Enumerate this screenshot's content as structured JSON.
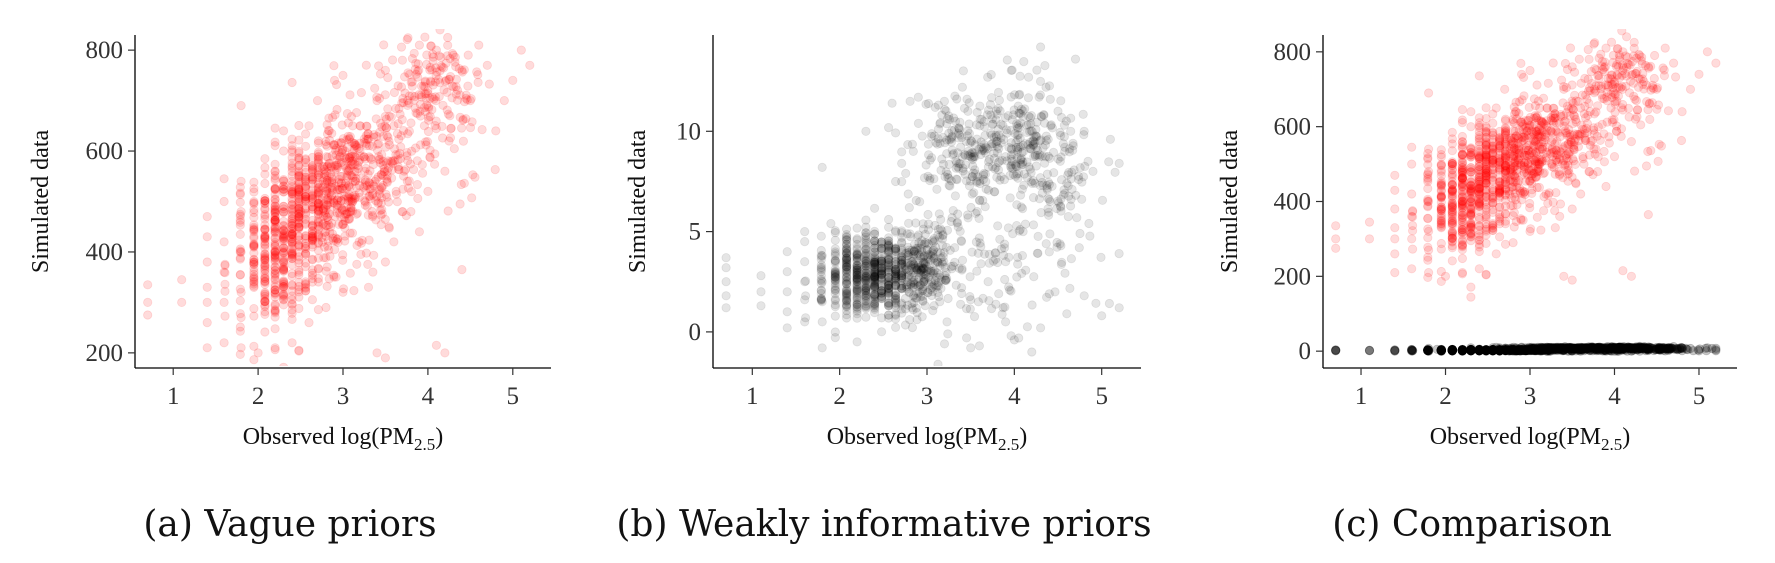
{
  "colors": {
    "vague": "#ff0000",
    "weakly": "#000000",
    "axis": "#000000"
  },
  "chart_data": [
    {
      "type": "scatter",
      "caption": "(a) Vague priors",
      "xlabel": "Observed log(PM",
      "xlabel_sub": "2.5",
      "xlabel_close": ")",
      "ylabel": "Simulated data",
      "xlim": [
        0.55,
        5.45
      ],
      "ylim": [
        170,
        830
      ],
      "xticks": [
        1,
        2,
        3,
        4,
        5
      ],
      "yticks": [
        200,
        400,
        600,
        800
      ],
      "grid": false,
      "series": [
        {
          "color": "#ff0000",
          "alpha": 0.14,
          "model": "vague",
          "points": [
            [
              0.7,
              275
            ],
            [
              0.7,
              300
            ],
            [
              0.7,
              335
            ],
            [
              1.1,
              300
            ],
            [
              1.1,
              345
            ],
            [
              1.4,
              210
            ],
            [
              1.4,
              260
            ],
            [
              1.4,
              300
            ],
            [
              1.4,
              330
            ],
            [
              1.4,
              380
            ],
            [
              1.4,
              430
            ],
            [
              1.4,
              470
            ],
            [
              1.6,
              220
            ],
            [
              1.6,
              300
            ],
            [
              1.6,
              360
            ],
            [
              1.6,
              420
            ],
            [
              1.6,
              500
            ],
            [
              1.6,
              545
            ],
            [
              1.8,
              210
            ],
            [
              1.8,
              270
            ],
            [
              1.8,
              320
            ],
            [
              1.8,
              400
            ],
            [
              1.8,
              480
            ],
            [
              1.8,
              540
            ],
            [
              1.8,
              690
            ],
            [
              2.2,
              560
            ],
            [
              2.3,
              600
            ],
            [
              2.3,
              640
            ],
            [
              2.6,
              650
            ],
            [
              2.7,
              700
            ],
            [
              2.9,
              740
            ],
            [
              3.0,
              750
            ],
            [
              3.2,
              650
            ],
            [
              3.4,
              700
            ],
            [
              3.5,
              760
            ],
            [
              3.7,
              780
            ],
            [
              3.9,
              810
            ],
            [
              4.1,
              800
            ],
            [
              4.3,
              790
            ],
            [
              4.4,
              760
            ],
            [
              4.6,
              810
            ],
            [
              4.7,
              770
            ],
            [
              4.9,
              700
            ],
            [
              5.0,
              740
            ],
            [
              5.1,
              800
            ],
            [
              5.2,
              770
            ],
            [
              4.5,
              700
            ],
            [
              4.8,
              640
            ],
            [
              4.2,
              560
            ],
            [
              4.0,
              520
            ],
            [
              3.8,
              480
            ],
            [
              3.6,
              420
            ],
            [
              3.5,
              380
            ],
            [
              3.3,
              330
            ],
            [
              3.4,
              200
            ],
            [
              3.5,
              190
            ],
            [
              4.2,
              200
            ],
            [
              4.1,
              215
            ],
            [
              4.4,
              365
            ],
            [
              3.9,
              440
            ],
            [
              3.0,
              320
            ],
            [
              2.8,
              290
            ],
            [
              2.6,
              260
            ],
            [
              2.4,
              220
            ],
            [
              2.2,
              210
            ],
            [
              2.0,
              200
            ],
            [
              2.5,
              480
            ],
            [
              2.9,
              560
            ],
            [
              3.2,
              600
            ],
            [
              3.6,
              650
            ],
            [
              4.0,
              720
            ]
          ],
          "clusters": [
            {
              "cx": 2.7,
              "cy": 500,
              "sx": 0.35,
              "sy": 55,
              "n": 360
            },
            {
              "cx": 2.15,
              "cy": 380,
              "sx": 0.22,
              "sy": 80,
              "n": 220
            },
            {
              "cx": 3.2,
              "cy": 560,
              "sx": 0.35,
              "sy": 55,
              "n": 240
            },
            {
              "cx": 4.1,
              "cy": 720,
              "sx": 0.25,
              "sy": 55,
              "n": 160
            },
            {
              "cx": 3.5,
              "cy": 600,
              "sx": 0.5,
              "sy": 80,
              "n": 120
            },
            {
              "cx": 2.4,
              "cy": 430,
              "sx": 0.3,
              "sy": 70,
              "n": 180
            }
          ]
        }
      ]
    },
    {
      "type": "scatter",
      "caption": "(b) Weakly informative priors",
      "xlabel": "Observed log(PM",
      "xlabel_sub": "2.5",
      "xlabel_close": ")",
      "ylabel": "Simulated data",
      "xlim": [
        0.55,
        5.45
      ],
      "ylim": [
        -1.8,
        14.8
      ],
      "xticks": [
        1,
        2,
        3,
        4,
        5
      ],
      "yticks": [
        0,
        5,
        10
      ],
      "grid": false,
      "series": [
        {
          "color": "#000000",
          "alpha": 0.1,
          "model": "weakly",
          "points": [
            [
              0.7,
              1.2
            ],
            [
              0.7,
              1.8
            ],
            [
              0.7,
              2.5
            ],
            [
              0.7,
              3.2
            ],
            [
              0.7,
              3.7
            ],
            [
              1.1,
              1.3
            ],
            [
              1.1,
              2.0
            ],
            [
              1.1,
              2.8
            ],
            [
              1.4,
              0.2
            ],
            [
              1.4,
              1.0
            ],
            [
              1.4,
              2.0
            ],
            [
              1.4,
              3.0
            ],
            [
              1.4,
              4.0
            ],
            [
              1.6,
              0.5
            ],
            [
              1.6,
              1.6
            ],
            [
              1.6,
              2.5
            ],
            [
              1.6,
              3.5
            ],
            [
              1.6,
              4.5
            ],
            [
              1.6,
              5.0
            ],
            [
              1.8,
              -0.8
            ],
            [
              1.8,
              0.5
            ],
            [
              1.8,
              1.5
            ],
            [
              1.8,
              2.5
            ],
            [
              1.8,
              3.8
            ],
            [
              1.8,
              8.2
            ],
            [
              1.9,
              5.4
            ],
            [
              2.2,
              -0.5
            ],
            [
              2.3,
              10.0
            ],
            [
              2.6,
              11.4
            ],
            [
              2.9,
              11.7
            ],
            [
              3.2,
              -0.6
            ],
            [
              3.5,
              -0.8
            ],
            [
              3.6,
              -0.7
            ],
            [
              3.9,
              0.5
            ],
            [
              4.0,
              -0.4
            ],
            [
              4.2,
              -1.0
            ],
            [
              4.3,
              0.2
            ],
            [
              4.4,
              1.9
            ],
            [
              4.6,
              0.9
            ],
            [
              4.8,
              1.8
            ],
            [
              5.0,
              0.8
            ],
            [
              5.2,
              1.2
            ],
            [
              4.7,
              13.6
            ],
            [
              4.3,
              14.2
            ],
            [
              4.5,
              11.0
            ],
            [
              4.8,
              10.0
            ],
            [
              5.1,
              9.6
            ],
            [
              5.2,
              8.4
            ],
            [
              4.9,
              8.0
            ],
            [
              4.6,
              7.4
            ],
            [
              4.4,
              6.6
            ],
            [
              4.1,
              5.0
            ],
            [
              3.9,
              3.5
            ],
            [
              3.7,
              2.5
            ],
            [
              3.5,
              1.6
            ]
          ],
          "clusters": [
            {
              "cx": 2.4,
              "cy": 2.8,
              "sx": 0.3,
              "sy": 1.05,
              "n": 620
            },
            {
              "cx": 2.9,
              "cy": 3.2,
              "sx": 0.2,
              "sy": 0.9,
              "n": 180
            },
            {
              "cx": 3.4,
              "cy": 8.8,
              "sx": 0.32,
              "sy": 1.3,
              "n": 200
            },
            {
              "cx": 4.1,
              "cy": 9.8,
              "sx": 0.3,
              "sy": 1.5,
              "n": 180
            },
            {
              "cx": 3.6,
              "cy": 4.0,
              "sx": 0.55,
              "sy": 2.2,
              "n": 170
            },
            {
              "cx": 4.4,
              "cy": 7.5,
              "sx": 0.35,
              "sy": 1.8,
              "n": 90
            }
          ]
        }
      ]
    },
    {
      "type": "scatter",
      "caption": "(c) Comparison",
      "xlabel": "Observed log(PM",
      "xlabel_sub": "2.5",
      "xlabel_close": ")",
      "ylabel": "Simulated data",
      "xlim": [
        0.55,
        5.45
      ],
      "ylim": [
        -45,
        845
      ],
      "xticks": [
        1,
        2,
        3,
        4,
        5
      ],
      "yticks": [
        0,
        200,
        400,
        600,
        800
      ],
      "grid": false,
      "series": [
        {
          "color": "#ff0000",
          "alpha": 0.14,
          "model": "vague",
          "reuse": 0
        },
        {
          "color": "#000000",
          "alpha": 0.22,
          "model": "weakly",
          "reuse": 1
        }
      ]
    }
  ]
}
